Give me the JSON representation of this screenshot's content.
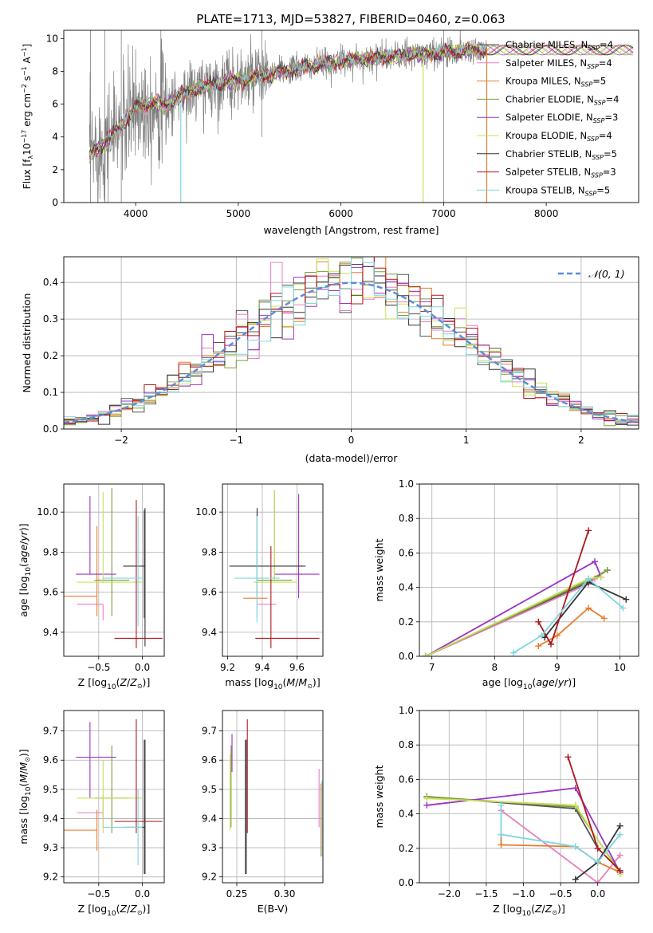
{
  "figure_title": "PLATE=1713, MJD=53827, FIBERID=0460, z=0.063",
  "colors": {
    "Chabrier MILES": "#555555",
    "Salpeter MILES": "#e87fbf",
    "Kroupa MILES": "#e87d2e",
    "Chabrier ELODIE": "#7a9e3a",
    "Salpeter ELODIE": "#9a33c6",
    "Kroupa ELODIE": "#c8e05a",
    "Chabrier STELIB": "#333333",
    "Salpeter STELIB": "#b0161d",
    "Kroupa STELIB": "#7fd6e0",
    "data": "#808080",
    "normal": "#5b8dd9"
  },
  "chart_data": [
    {
      "id": "spectrum",
      "type": "line",
      "title": "",
      "xlabel": "wavelength [Angstrom, rest frame]",
      "ylabel": "Flux [f",
      "xlim": [
        3300,
        8900
      ],
      "ylim": [
        0,
        10.5
      ],
      "xticks": [
        4000,
        5000,
        6000,
        7000,
        8000
      ],
      "yticks": [
        0,
        2,
        4,
        6,
        8,
        10
      ],
      "grid": false,
      "legend_position": "right",
      "legend": [
        {
          "base": "Chabrier MILES, N",
          "sub": "SSP",
          "tail": "=4"
        },
        {
          "base": "Salpeter MILES, N",
          "sub": "SSP",
          "tail": "=4"
        },
        {
          "base": "Kroupa MILES, N",
          "sub": "SSP",
          "tail": "=5"
        },
        {
          "base": "Chabrier ELODIE, N",
          "sub": "SSP",
          "tail": "=4"
        },
        {
          "base": "Salpeter ELODIE, N",
          "sub": "SSP",
          "tail": "=3"
        },
        {
          "base": "Kroupa ELODIE, N",
          "sub": "SSP",
          "tail": "=4"
        },
        {
          "base": "Chabrier STELIB, N",
          "sub": "SSP",
          "tail": "=5"
        },
        {
          "base": "Salpeter STELIB, N",
          "sub": "SSP",
          "tail": "=3"
        },
        {
          "base": "Kroupa STELIB, N",
          "sub": "SSP",
          "tail": "=5"
        }
      ],
      "continuum": {
        "x": [
          3550,
          3600,
          3700,
          3800,
          3850,
          3900,
          3950,
          4000,
          4100,
          4200,
          4300,
          4400,
          4500,
          4700,
          4900,
          5100,
          5300,
          5500,
          5700,
          5900,
          6100,
          6300,
          6500,
          6700,
          6900,
          7100,
          7300,
          7420
        ],
        "y": [
          2.8,
          3.2,
          3.6,
          4.3,
          4.6,
          4.9,
          5.3,
          5.8,
          6.0,
          6.1,
          5.9,
          6.4,
          6.7,
          7.1,
          7.4,
          7.5,
          7.8,
          8.1,
          8.3,
          8.5,
          8.7,
          8.8,
          8.9,
          9.0,
          9.1,
          9.2,
          9.3,
          9.3
        ]
      }
    },
    {
      "id": "residuals",
      "type": "histogram",
      "title": "",
      "xlabel": "(data-model)/error",
      "ylabel": "Normed distribution",
      "xlim": [
        -2.5,
        2.5
      ],
      "ylim": [
        0,
        0.47
      ],
      "xticks": [
        -2,
        -1,
        0,
        1,
        2
      ],
      "yticks": [
        0.0,
        0.1,
        0.2,
        0.3,
        0.4
      ],
      "grid": true,
      "legend_position": "top-right",
      "legend_label": "𝒩(0, 1)",
      "bin_width": 0.1
    },
    {
      "id": "age_vs_Z",
      "type": "scatter",
      "xlabel": "Z [log",
      "ylabel": "age  [log",
      "xlim": [
        -0.9,
        0.25
      ],
      "ylim": [
        9.28,
        10.14
      ],
      "xticks": [
        -0.5,
        0.0
      ],
      "yticks": [
        9.4,
        9.6,
        9.8,
        10.0
      ],
      "grid": true,
      "points": [
        {
          "model": "Chabrier MILES",
          "x": 0.02,
          "y": 9.67,
          "xerr": [
            0.0,
            0.0
          ],
          "yerr": [
            0.2,
            0.34
          ]
        },
        {
          "model": "Salpeter MILES",
          "x": -0.45,
          "y": 9.54,
          "xerr": [
            0.3,
            0.0
          ],
          "yerr": [
            0.08,
            0.0
          ]
        },
        {
          "model": "Kroupa MILES",
          "x": -0.52,
          "y": 9.58,
          "xerr": [
            0.38,
            0.0
          ],
          "yerr": [
            0.1,
            0.35
          ]
        },
        {
          "model": "Chabrier ELODIE",
          "x": -0.35,
          "y": 9.66,
          "xerr": [
            0.2,
            0.2
          ],
          "yerr": [
            0.18,
            0.46
          ]
        },
        {
          "model": "Salpeter ELODIE",
          "x": -0.6,
          "y": 9.69,
          "xerr": [
            0.16,
            0.3
          ],
          "yerr": [
            0.0,
            0.39
          ]
        },
        {
          "model": "Kroupa ELODIE",
          "x": -0.45,
          "y": 9.65,
          "xerr": [
            0.3,
            0.45
          ],
          "yerr": [
            0.0,
            0.45
          ]
        },
        {
          "model": "Chabrier STELIB",
          "x": 0.03,
          "y": 9.73,
          "xerr": [
            0.25,
            0.0
          ],
          "yerr": [
            0.4,
            0.29
          ]
        },
        {
          "model": "Salpeter STELIB",
          "x": -0.07,
          "y": 9.37,
          "xerr": [
            0.25,
            0.3
          ],
          "yerr": [
            0.05,
            0.69
          ]
        },
        {
          "model": "Kroupa STELIB",
          "x": -0.05,
          "y": 9.67,
          "xerr": [
            0.4,
            0.05
          ],
          "yerr": [
            0.24,
            0.31
          ]
        }
      ]
    },
    {
      "id": "age_vs_mass",
      "type": "scatter",
      "xlabel": "mass [log",
      "ylabel": "",
      "xlim": [
        9.17,
        9.75
      ],
      "ylim": [
        9.28,
        10.14
      ],
      "xticks": [
        9.2,
        9.4,
        9.6
      ],
      "yticks": [
        9.4,
        9.6,
        9.8,
        10.0
      ],
      "grid": true,
      "points": [
        {
          "model": "Chabrier MILES",
          "x": 9.37,
          "y": 9.67,
          "xerr": [
            0.0,
            0.0
          ],
          "yerr": [
            0.2,
            0.33
          ]
        },
        {
          "model": "Salpeter MILES",
          "x": 9.42,
          "y": 9.54,
          "xerr": [
            0.05,
            0.06
          ],
          "yerr": [
            0.0,
            0.0
          ]
        },
        {
          "model": "Kroupa MILES",
          "x": 9.36,
          "y": 9.57,
          "xerr": [
            0.07,
            0.07
          ],
          "yerr": [
            0.0,
            0.0
          ]
        },
        {
          "model": "Chabrier ELODIE",
          "x": 9.47,
          "y": 9.66,
          "xerr": [
            0.1,
            0.1
          ],
          "yerr": [
            0.0,
            0.45
          ]
        },
        {
          "model": "Salpeter ELODIE",
          "x": 9.61,
          "y": 9.69,
          "xerr": [
            0.14,
            0.12
          ],
          "yerr": [
            0.12,
            0.4
          ]
        },
        {
          "model": "Kroupa ELODIE",
          "x": 9.47,
          "y": 9.65,
          "xerr": [
            0.12,
            0.13
          ],
          "yerr": [
            0.0,
            0.46
          ]
        },
        {
          "model": "Chabrier STELIB",
          "x": 9.37,
          "y": 9.73,
          "xerr": [
            0.16,
            0.28
          ],
          "yerr": [
            0.15,
            0.29
          ]
        },
        {
          "model": "Salpeter STELIB",
          "x": 9.45,
          "y": 9.37,
          "xerr": [
            0.09,
            0.28
          ],
          "yerr": [
            0.05,
            0.46
          ]
        },
        {
          "model": "Kroupa STELIB",
          "x": 9.37,
          "y": 9.67,
          "xerr": [
            0.13,
            0.13
          ],
          "yerr": [
            0.22,
            0.31
          ]
        }
      ]
    },
    {
      "id": "weight_vs_age",
      "type": "line",
      "xlabel": "age  [log",
      "ylabel": "mass weight",
      "xlim": [
        6.8,
        10.3
      ],
      "ylim": [
        0,
        1.0
      ],
      "xticks": [
        7,
        8,
        9,
        10
      ],
      "yticks": [
        0.0,
        0.2,
        0.4,
        0.6,
        0.8,
        1.0
      ],
      "grid": true,
      "series": [
        {
          "model": "Chabrier MILES",
          "x": [
            6.9,
            9.5,
            9.8
          ],
          "y": [
            0.0,
            0.43,
            0.5
          ]
        },
        {
          "model": "Salpeter MILES",
          "x": [
            6.9,
            9.5,
            9.6
          ],
          "y": [
            0.0,
            0.42,
            0.45
          ]
        },
        {
          "model": "Kroupa MILES",
          "x": [
            8.7,
            9.0,
            9.5,
            9.75
          ],
          "y": [
            0.06,
            0.12,
            0.28,
            0.22
          ]
        },
        {
          "model": "Chabrier ELODIE",
          "x": [
            6.9,
            9.5,
            9.8
          ],
          "y": [
            0.0,
            0.44,
            0.5
          ]
        },
        {
          "model": "Salpeter ELODIE",
          "x": [
            6.9,
            9.6,
            9.7
          ],
          "y": [
            0.0,
            0.55,
            0.46
          ]
        },
        {
          "model": "Kroupa ELODIE",
          "x": [
            6.9,
            9.5,
            9.7
          ],
          "y": [
            0.0,
            0.45,
            0.46
          ]
        },
        {
          "model": "Chabrier STELIB",
          "x": [
            8.8,
            9.5,
            10.1
          ],
          "y": [
            0.11,
            0.43,
            0.33
          ]
        },
        {
          "model": "Salpeter STELIB",
          "x": [
            8.7,
            8.9,
            9.5
          ],
          "y": [
            0.2,
            0.07,
            0.73
          ]
        },
        {
          "model": "Kroupa STELIB",
          "x": [
            8.3,
            8.75,
            9.5,
            10.05
          ],
          "y": [
            0.02,
            0.12,
            0.45,
            0.28
          ]
        }
      ]
    },
    {
      "id": "mass_vs_Z",
      "type": "scatter",
      "xlabel": "Z [log",
      "ylabel": "mass [log",
      "xlim": [
        -0.9,
        0.25
      ],
      "ylim": [
        9.18,
        9.77
      ],
      "xticks": [
        -0.5,
        0.0
      ],
      "yticks": [
        9.2,
        9.3,
        9.4,
        9.5,
        9.6,
        9.7
      ],
      "grid": true,
      "points": [
        {
          "model": "Chabrier MILES",
          "x": 0.02,
          "y": 9.37,
          "xerr": [
            0.0,
            0.0
          ],
          "yerr": [
            0.16,
            0.3
          ]
        },
        {
          "model": "Salpeter MILES",
          "x": -0.45,
          "y": 9.42,
          "xerr": [
            0.3,
            0.0
          ],
          "yerr": [
            0.05,
            0.06
          ]
        },
        {
          "model": "Kroupa MILES",
          "x": -0.52,
          "y": 9.36,
          "xerr": [
            0.38,
            0.0
          ],
          "yerr": [
            0.07,
            0.07
          ]
        },
        {
          "model": "Chabrier ELODIE",
          "x": -0.35,
          "y": 9.47,
          "xerr": [
            0.2,
            0.2
          ],
          "yerr": [
            0.12,
            0.18
          ]
        },
        {
          "model": "Salpeter ELODIE",
          "x": -0.6,
          "y": 9.61,
          "xerr": [
            0.16,
            0.3
          ],
          "yerr": [
            0.14,
            0.12
          ]
        },
        {
          "model": "Kroupa ELODIE",
          "x": -0.45,
          "y": 9.47,
          "xerr": [
            0.3,
            0.45
          ],
          "yerr": [
            0.12,
            0.13
          ]
        },
        {
          "model": "Chabrier STELIB",
          "x": 0.03,
          "y": 9.37,
          "xerr": [
            0.25,
            0.0
          ],
          "yerr": [
            0.16,
            0.3
          ]
        },
        {
          "model": "Salpeter STELIB",
          "x": -0.07,
          "y": 9.39,
          "xerr": [
            0.25,
            0.3
          ],
          "yerr": [
            0.04,
            0.35
          ]
        },
        {
          "model": "Kroupa STELIB",
          "x": -0.05,
          "y": 9.37,
          "xerr": [
            0.4,
            0.05
          ],
          "yerr": [
            0.13,
            0.13
          ]
        }
      ]
    },
    {
      "id": "mass_vs_ebv",
      "type": "scatter",
      "xlabel": "E(B-V)",
      "ylabel": "",
      "xlim": [
        0.235,
        0.34
      ],
      "ylim": [
        9.18,
        9.77
      ],
      "xticks": [
        0.25,
        0.3
      ],
      "yticks": [
        9.2,
        9.3,
        9.4,
        9.5,
        9.6,
        9.7
      ],
      "grid": true,
      "points": [
        {
          "model": "Chabrier MILES",
          "x": 0.26,
          "y": 9.37,
          "xerr": [
            0.0,
            0.0
          ],
          "yerr": [
            0.16,
            0.3
          ]
        },
        {
          "model": "Salpeter MILES",
          "x": 0.336,
          "y": 9.42,
          "xerr": [
            0.0,
            0.0
          ],
          "yerr": [
            0.05,
            0.15
          ]
        },
        {
          "model": "Kroupa MILES",
          "x": 0.338,
          "y": 9.36,
          "xerr": [
            0.0,
            0.0
          ],
          "yerr": [
            0.09,
            0.16
          ]
        },
        {
          "model": "Chabrier ELODIE",
          "x": 0.244,
          "y": 9.47,
          "xerr": [
            0.0,
            0.0
          ],
          "yerr": [
            0.1,
            0.18
          ]
        },
        {
          "model": "Salpeter ELODIE",
          "x": 0.245,
          "y": 9.61,
          "xerr": [
            0.0,
            0.0
          ],
          "yerr": [
            0.05,
            0.08
          ]
        },
        {
          "model": "Kroupa ELODIE",
          "x": 0.243,
          "y": 9.47,
          "xerr": [
            0.0,
            0.0
          ],
          "yerr": [
            0.11,
            0.15
          ]
        },
        {
          "model": "Chabrier STELIB",
          "x": 0.259,
          "y": 9.37,
          "xerr": [
            0.0,
            0.0
          ],
          "yerr": [
            0.16,
            0.3
          ]
        },
        {
          "model": "Salpeter STELIB",
          "x": 0.261,
          "y": 9.39,
          "xerr": [
            0.0,
            0.0
          ],
          "yerr": [
            0.04,
            0.35
          ]
        },
        {
          "model": "Kroupa STELIB",
          "x": 0.339,
          "y": 9.37,
          "xerr": [
            0.0,
            0.0
          ],
          "yerr": [
            0.1,
            0.16
          ]
        }
      ]
    },
    {
      "id": "weight_vs_Z",
      "type": "line",
      "xlabel": "Z [log",
      "ylabel": "mass weight",
      "xlim": [
        -2.4,
        0.55
      ],
      "ylim": [
        0,
        1.0
      ],
      "xticks": [
        -2.0,
        -1.5,
        -1.0,
        -0.5,
        0.0
      ],
      "yticks": [
        0.0,
        0.2,
        0.4,
        0.6,
        0.8,
        1.0
      ],
      "grid": true,
      "series": [
        {
          "model": "Chabrier MILES",
          "x": [
            -2.3,
            -0.3,
            0.0
          ],
          "y": [
            0.5,
            0.43,
            0.2
          ]
        },
        {
          "model": "Salpeter MILES",
          "x": [
            -1.3,
            0.0,
            0.3
          ],
          "y": [
            0.42,
            0.0,
            0.16
          ]
        },
        {
          "model": "Kroupa MILES",
          "x": [
            -1.3,
            -1.3,
            -0.3,
            0.0,
            0.3
          ],
          "y": [
            0.28,
            0.22,
            0.21,
            0.12,
            0.06
          ]
        },
        {
          "model": "Chabrier ELODIE",
          "x": [
            -2.3,
            -0.3,
            0.3
          ],
          "y": [
            0.5,
            0.44,
            0.06
          ]
        },
        {
          "model": "Salpeter ELODIE",
          "x": [
            -2.3,
            -0.3,
            0.3
          ],
          "y": [
            0.45,
            0.55,
            0.06
          ]
        },
        {
          "model": "Kroupa ELODIE",
          "x": [
            -2.3,
            -0.3,
            0.3
          ],
          "y": [
            0.49,
            0.45,
            0.05
          ]
        },
        {
          "model": "Chabrier STELIB",
          "x": [
            -0.3,
            0.0,
            0.3
          ],
          "y": [
            0.02,
            0.12,
            0.33
          ]
        },
        {
          "model": "Salpeter STELIB",
          "x": [
            -0.4,
            0.0,
            0.3
          ],
          "y": [
            0.73,
            0.2,
            0.07
          ]
        },
        {
          "model": "Kroupa STELIB",
          "x": [
            -1.3,
            -1.3,
            -0.3,
            0.0,
            0.3
          ],
          "y": [
            0.45,
            0.28,
            0.21,
            0.12,
            0.28
          ]
        }
      ]
    }
  ]
}
